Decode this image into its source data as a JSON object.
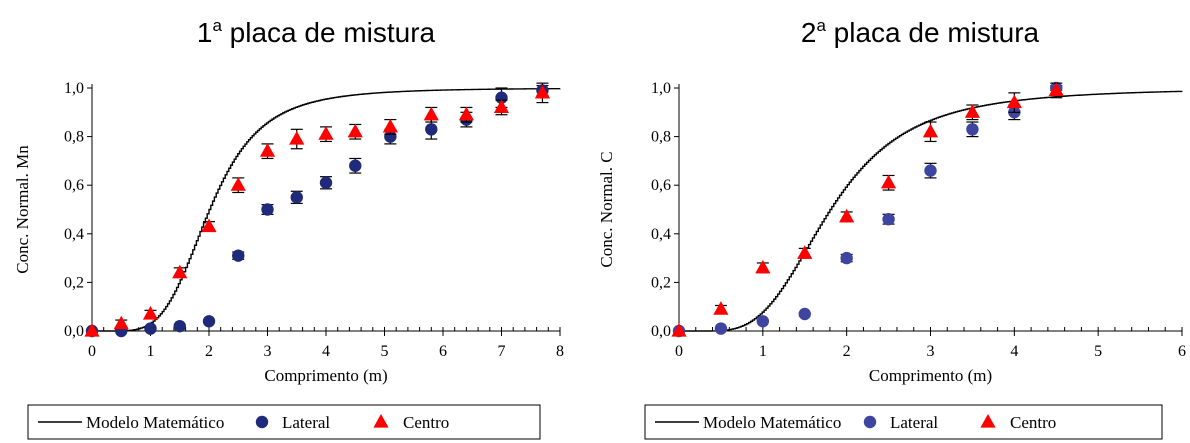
{
  "chart_data": [
    {
      "type": "scatter",
      "title": "1",
      "title_sup": "a",
      "title_rest": " placa de mistura",
      "xlabel": "Comprimento (m)",
      "ylabel": "Conc. Normal. Mn",
      "xlim": [
        0,
        8
      ],
      "ylim": [
        0,
        1
      ],
      "xticks": [
        "0",
        "1",
        "2",
        "3",
        "4",
        "5",
        "6",
        "7",
        "8"
      ],
      "yticks": [
        "0,0",
        "0,2",
        "0,4",
        "0,6",
        "0,8",
        "1,0"
      ],
      "legend_position": "bottom",
      "series": [
        {
          "name": "Modelo Matemático",
          "kind": "line",
          "color": "#000000",
          "model": {
            "midpoint": 2.0,
            "shape": 4.0,
            "start": 0.25
          }
        },
        {
          "name": "Lateral",
          "kind": "scatter",
          "marker": "circle",
          "color": "#1f2a7a",
          "x": [
            0,
            0.5,
            1.0,
            1.5,
            2.0,
            2.5,
            3.0,
            3.5,
            4.0,
            4.5,
            5.1,
            5.8,
            6.4,
            7.0,
            7.7
          ],
          "y": [
            0.0,
            0.0,
            0.01,
            0.02,
            0.04,
            0.31,
            0.5,
            0.55,
            0.61,
            0.68,
            0.8,
            0.83,
            0.87,
            0.96,
            0.99
          ],
          "err": [
            0,
            0,
            0,
            0,
            0,
            0.015,
            0.02,
            0.025,
            0.025,
            0.03,
            0.03,
            0.04,
            0.03,
            0.04,
            0.02
          ]
        },
        {
          "name": "Centro",
          "kind": "scatter",
          "marker": "triangle",
          "color": "#ff0000",
          "x": [
            0,
            0.5,
            1.0,
            1.5,
            2.0,
            2.5,
            3.0,
            3.5,
            4.0,
            4.5,
            5.1,
            5.8,
            6.4,
            7.0,
            7.7
          ],
          "y": [
            0.0,
            0.03,
            0.07,
            0.24,
            0.43,
            0.6,
            0.74,
            0.79,
            0.81,
            0.82,
            0.84,
            0.89,
            0.89,
            0.92,
            0.98
          ],
          "err": [
            0,
            0.015,
            0.015,
            0.02,
            0.02,
            0.03,
            0.03,
            0.04,
            0.03,
            0.03,
            0.03,
            0.03,
            0.03,
            0.03,
            0.04
          ]
        }
      ]
    },
    {
      "type": "scatter",
      "title": "2",
      "title_sup": "a",
      "title_rest": " placa de mistura",
      "xlabel": "Comprimento (m)",
      "ylabel": "Conc. Normal. C",
      "xlim": [
        0,
        6
      ],
      "ylim": [
        0,
        1
      ],
      "xticks": [
        "0",
        "1",
        "2",
        "3",
        "4",
        "5",
        "6"
      ],
      "yticks": [
        "0,0",
        "0,2",
        "0,4",
        "0,6",
        "0,8",
        "1,0"
      ],
      "legend_position": "bottom",
      "series": [
        {
          "name": "Modelo Matemático",
          "kind": "line",
          "color": "#000000",
          "model": {
            "midpoint": 1.8,
            "shape": 3.2,
            "start": 0.3
          }
        },
        {
          "name": "Lateral",
          "kind": "scatter",
          "marker": "circle",
          "color": "#3e45a0",
          "x": [
            0,
            0.5,
            1.0,
            1.5,
            2.0,
            2.5,
            3.0,
            3.5,
            4.0,
            4.5
          ],
          "y": [
            0.0,
            0.01,
            0.04,
            0.07,
            0.3,
            0.46,
            0.66,
            0.83,
            0.9,
            1.0
          ],
          "err": [
            0,
            0,
            0,
            0,
            0.015,
            0.02,
            0.03,
            0.03,
            0.03,
            0.01
          ]
        },
        {
          "name": "Centro",
          "kind": "scatter",
          "marker": "triangle",
          "color": "#ff0000",
          "x": [
            0,
            0.5,
            1.0,
            1.5,
            2.0,
            2.5,
            3.0,
            3.5,
            4.0,
            4.5
          ],
          "y": [
            0.0,
            0.09,
            0.26,
            0.32,
            0.47,
            0.61,
            0.82,
            0.9,
            0.94,
            0.99
          ],
          "err": [
            0,
            0.015,
            0.02,
            0.02,
            0.02,
            0.03,
            0.04,
            0.03,
            0.04,
            0.03
          ]
        }
      ]
    }
  ]
}
